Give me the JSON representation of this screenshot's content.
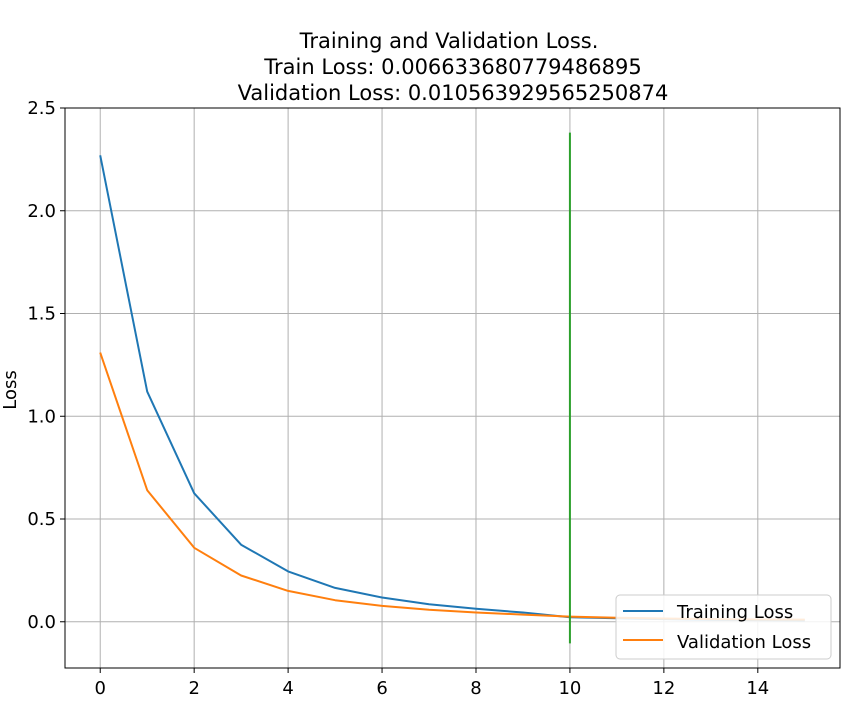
{
  "chart_data": {
    "type": "line",
    "title_lines": [
      "Training and Validation Loss.",
      "Train Loss: 0.006633680779486895",
      "Validation Loss: 0.010563929565250874"
    ],
    "xlabel": "",
    "ylabel": "Loss",
    "xlim": [
      -0.75,
      15.75
    ],
    "ylim": [
      -0.225,
      2.5
    ],
    "xticks": [
      0,
      2,
      4,
      6,
      8,
      10,
      12,
      14
    ],
    "yticks": [
      0.0,
      0.5,
      1.0,
      1.5,
      2.0,
      2.5
    ],
    "xtick_labels": [
      "0",
      "2",
      "4",
      "6",
      "8",
      "10",
      "12",
      "14"
    ],
    "ytick_labels": [
      "0.0",
      "0.5",
      "1.0",
      "1.5",
      "2.0",
      "2.5"
    ],
    "grid": true,
    "legend_position": "lower-right",
    "x": [
      0,
      1,
      2,
      3,
      4,
      5,
      6,
      7,
      8,
      9,
      10,
      11,
      12,
      13,
      14,
      15
    ],
    "series": [
      {
        "name": "Training Loss",
        "color": "#1f77b4",
        "values": [
          2.27,
          1.12,
          0.625,
          0.375,
          0.245,
          0.165,
          0.118,
          0.085,
          0.063,
          0.045,
          0.022,
          0.017,
          0.013,
          0.01,
          0.008,
          0.0066
        ]
      },
      {
        "name": "Validation Loss",
        "color": "#ff7f0e",
        "values": [
          1.31,
          0.64,
          0.36,
          0.225,
          0.15,
          0.105,
          0.077,
          0.058,
          0.045,
          0.035,
          0.025,
          0.02,
          0.016,
          0.013,
          0.011,
          0.0106
        ]
      }
    ],
    "vline": {
      "x": 10,
      "y_from": -0.105,
      "y_to": 2.38,
      "color": "#2ca02c"
    }
  }
}
